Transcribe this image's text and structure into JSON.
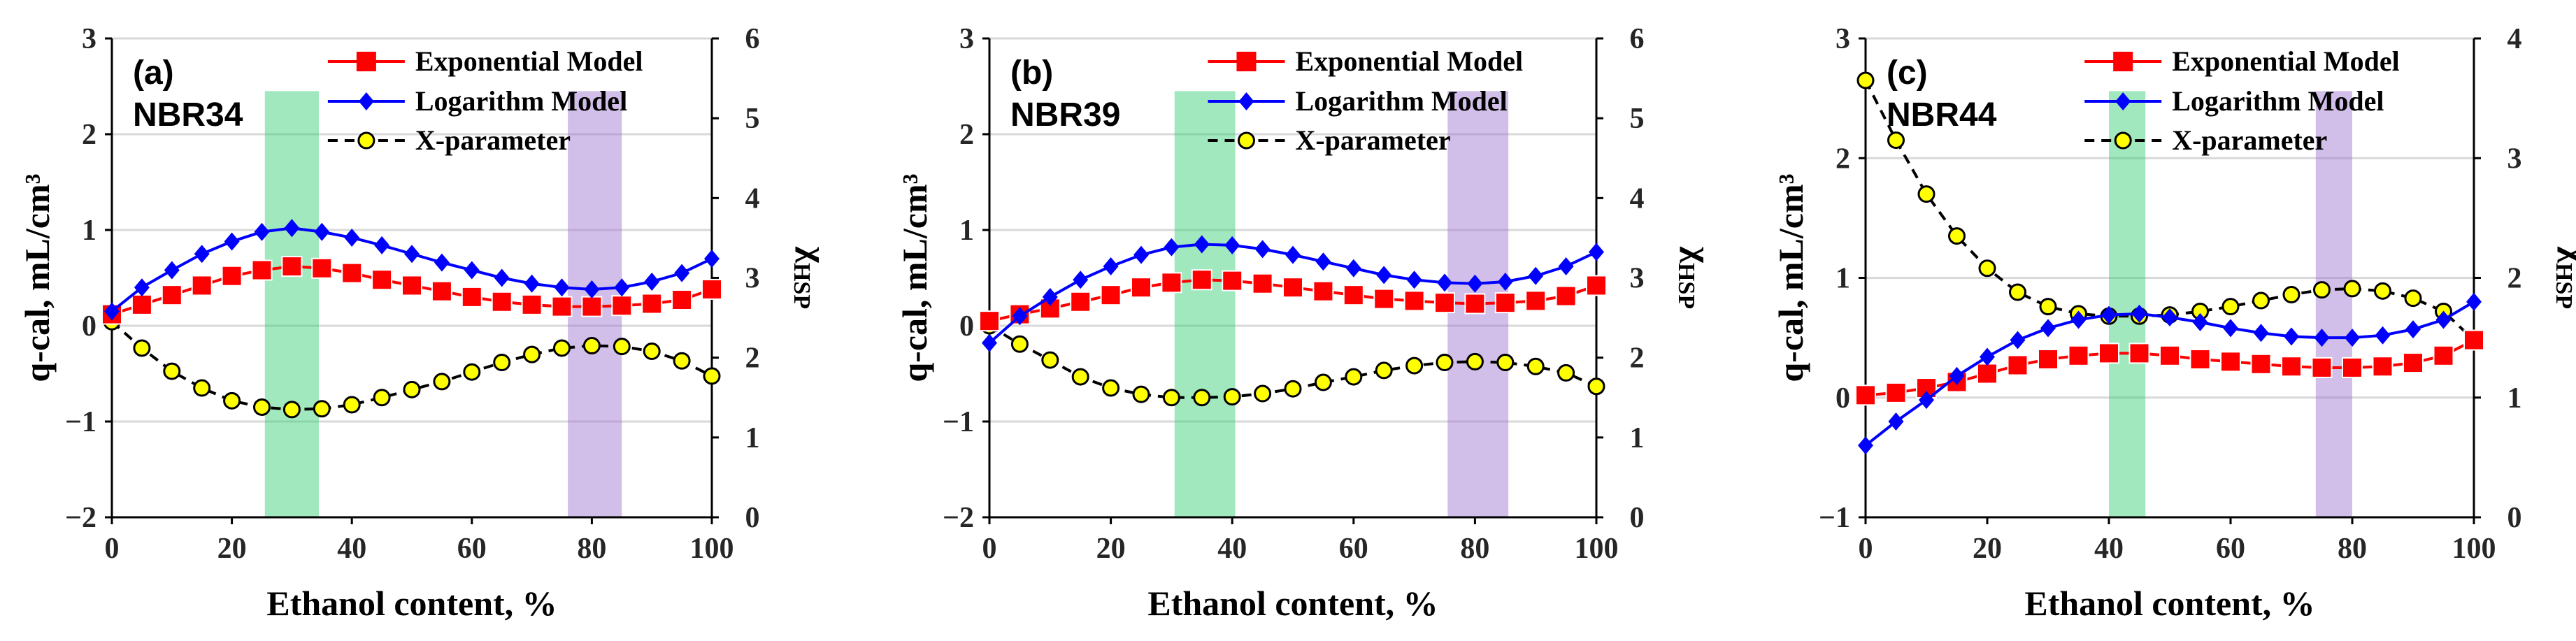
{
  "figure": {
    "colors": {
      "exponential": "#ff0000",
      "logarithm": "#0000ff",
      "xparam_fill": "#ffff00",
      "xparam_line": "#000000",
      "band_green": "#2ecc71",
      "band_purple": "#9b72cf",
      "grid": "#d9d9d9"
    },
    "legend": {
      "exponential": "Exponential Model",
      "logarithm": "Logarithm Model",
      "xparam": "X-parameter"
    }
  },
  "chart_data": [
    {
      "type": "line",
      "panel_label": "(a)",
      "title": "NBR34",
      "xlabel": "Ethanol content, %",
      "ylabel": "q-cal, mL/cm³",
      "y2label_main": "χ",
      "y2label_sub": "HSP",
      "xlim": [
        0,
        100
      ],
      "ylim": [
        -2,
        3
      ],
      "y2lim": [
        0,
        6
      ],
      "xticks": [
        "0",
        "20",
        "40",
        "60",
        "80",
        "100"
      ],
      "yticks": [
        "−2",
        "−1",
        "0",
        "1",
        "2",
        "3"
      ],
      "y2ticks": [
        "0",
        "1",
        "2",
        "3",
        "4",
        "5",
        "6"
      ],
      "bands": [
        [
          25.5,
          34.5
        ],
        [
          76,
          85
        ]
      ],
      "x": [
        0,
        5,
        10,
        15,
        20,
        25,
        30,
        35,
        40,
        45,
        50,
        55,
        60,
        65,
        70,
        75,
        80,
        85,
        90,
        95,
        100
      ],
      "series": [
        {
          "name": "Exponential Model",
          "axis": "left",
          "values": [
            0.12,
            0.22,
            0.32,
            0.42,
            0.52,
            0.58,
            0.62,
            0.6,
            0.55,
            0.48,
            0.42,
            0.36,
            0.3,
            0.25,
            0.22,
            0.2,
            0.2,
            0.21,
            0.23,
            0.27,
            0.38
          ]
        },
        {
          "name": "Logarithm Model",
          "axis": "left",
          "values": [
            0.15,
            0.4,
            0.58,
            0.75,
            0.88,
            0.98,
            1.02,
            0.98,
            0.92,
            0.84,
            0.75,
            0.66,
            0.58,
            0.5,
            0.44,
            0.4,
            0.38,
            0.4,
            0.46,
            0.55,
            0.7
          ]
        },
        {
          "name": "X-parameter",
          "axis": "right",
          "values": [
            2.45,
            2.12,
            1.83,
            1.62,
            1.46,
            1.38,
            1.35,
            1.36,
            1.41,
            1.5,
            1.6,
            1.7,
            1.82,
            1.94,
            2.04,
            2.12,
            2.15,
            2.14,
            2.08,
            1.96,
            1.77
          ]
        }
      ]
    },
    {
      "type": "line",
      "panel_label": "(b)",
      "title": "NBR39",
      "xlabel": "Ethanol content, %",
      "ylabel": "q-cal, mL/cm³",
      "y2label_main": "χ",
      "y2label_sub": "HSP",
      "xlim": [
        0,
        100
      ],
      "ylim": [
        -2,
        3
      ],
      "y2lim": [
        0,
        6
      ],
      "xticks": [
        "0",
        "20",
        "40",
        "60",
        "80",
        "100"
      ],
      "yticks": [
        "−2",
        "−1",
        "0",
        "1",
        "2",
        "3"
      ],
      "y2ticks": [
        "0",
        "1",
        "2",
        "3",
        "4",
        "5",
        "6"
      ],
      "bands": [
        [
          30.5,
          40.5
        ],
        [
          75.5,
          85.5
        ]
      ],
      "x": [
        0,
        5,
        10,
        15,
        20,
        25,
        30,
        35,
        40,
        45,
        50,
        55,
        60,
        65,
        70,
        75,
        80,
        85,
        90,
        95,
        100
      ],
      "series": [
        {
          "name": "Exponential Model",
          "axis": "left",
          "values": [
            0.05,
            0.12,
            0.18,
            0.25,
            0.32,
            0.4,
            0.45,
            0.48,
            0.47,
            0.44,
            0.4,
            0.36,
            0.32,
            0.28,
            0.26,
            0.24,
            0.23,
            0.24,
            0.26,
            0.31,
            0.42
          ]
        },
        {
          "name": "Logarithm Model",
          "axis": "left",
          "values": [
            -0.18,
            0.1,
            0.3,
            0.48,
            0.62,
            0.74,
            0.82,
            0.85,
            0.84,
            0.8,
            0.74,
            0.67,
            0.6,
            0.53,
            0.48,
            0.45,
            0.44,
            0.46,
            0.52,
            0.62,
            0.77
          ]
        },
        {
          "name": "X-parameter",
          "axis": "right",
          "values": [
            2.4,
            2.17,
            1.97,
            1.76,
            1.62,
            1.54,
            1.5,
            1.5,
            1.51,
            1.55,
            1.61,
            1.69,
            1.76,
            1.84,
            1.9,
            1.94,
            1.95,
            1.94,
            1.89,
            1.81,
            1.64
          ]
        }
      ]
    },
    {
      "type": "line",
      "panel_label": "(c)",
      "title": "NBR44",
      "xlabel": "Ethanol content, %",
      "ylabel": "q-cal, mL/cm³",
      "y2label_main": "χ",
      "y2label_sub": "HSP",
      "xlim": [
        0,
        100
      ],
      "ylim": [
        -1,
        3
      ],
      "y2lim": [
        0,
        4
      ],
      "xticks": [
        "0",
        "20",
        "40",
        "60",
        "80",
        "100"
      ],
      "yticks": [
        "−1",
        "0",
        "1",
        "2",
        "3"
      ],
      "y2ticks": [
        "0",
        "1",
        "2",
        "3",
        "4"
      ],
      "bands": [
        [
          40,
          46
        ],
        [
          74,
          80
        ]
      ],
      "x": [
        0,
        5,
        10,
        15,
        20,
        25,
        30,
        35,
        40,
        45,
        50,
        55,
        60,
        65,
        70,
        75,
        80,
        85,
        90,
        95,
        100
      ],
      "series": [
        {
          "name": "Exponential Model",
          "axis": "left",
          "values": [
            0.02,
            0.04,
            0.08,
            0.13,
            0.2,
            0.27,
            0.32,
            0.35,
            0.37,
            0.37,
            0.35,
            0.32,
            0.3,
            0.28,
            0.26,
            0.25,
            0.25,
            0.26,
            0.29,
            0.35,
            0.48
          ]
        },
        {
          "name": "Logarithm Model",
          "axis": "left",
          "values": [
            -0.4,
            -0.2,
            -0.02,
            0.18,
            0.34,
            0.48,
            0.58,
            0.65,
            0.69,
            0.7,
            0.67,
            0.63,
            0.58,
            0.54,
            0.51,
            0.5,
            0.5,
            0.52,
            0.57,
            0.65,
            0.8
          ]
        },
        {
          "name": "X-parameter",
          "axis": "right",
          "values": [
            3.65,
            3.15,
            2.7,
            2.35,
            2.08,
            1.88,
            1.76,
            1.7,
            1.68,
            1.68,
            1.69,
            1.72,
            1.76,
            1.81,
            1.86,
            1.9,
            1.91,
            1.89,
            1.83,
            1.72,
            1.48
          ]
        }
      ]
    }
  ]
}
